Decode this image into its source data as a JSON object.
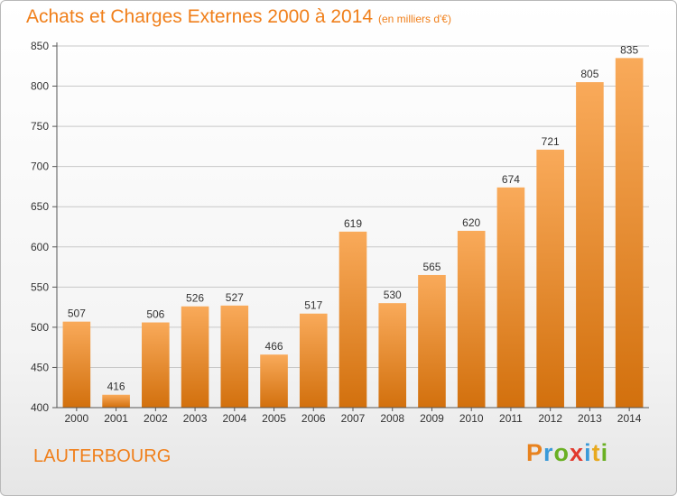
{
  "colors": {
    "accent": "#f07f1a",
    "bar_top": "#f9aa5a",
    "bar_bottom": "#d2700d",
    "axis": "#555555",
    "grid": "#c8c8c8"
  },
  "footer": {
    "city": "LAUTERBOURG",
    "brand_letters": [
      {
        "char": "P",
        "color": "#e8821e"
      },
      {
        "char": "r",
        "color": "#3a9ad9"
      },
      {
        "char": "o",
        "color": "#6ab023"
      },
      {
        "char": "x",
        "color": "#e23a2e"
      },
      {
        "char": "i",
        "color": "#3a9ad9"
      },
      {
        "char": "t",
        "color": "#e8a91e"
      },
      {
        "char": "i",
        "color": "#6ab023"
      }
    ]
  },
  "chart_data": {
    "type": "bar",
    "title": "Achats et Charges Externes 2000 à 2014",
    "subtitle": "(en milliers d'€)",
    "xlabel": "",
    "ylabel": "",
    "categories": [
      "2000",
      "2001",
      "2002",
      "2003",
      "2004",
      "2005",
      "2006",
      "2007",
      "2008",
      "2009",
      "2010",
      "2011",
      "2012",
      "2013",
      "2014"
    ],
    "values": [
      507,
      416,
      506,
      526,
      527,
      466,
      517,
      619,
      530,
      565,
      620,
      674,
      721,
      805,
      835
    ],
    "ylim": [
      400,
      850
    ],
    "yticks": [
      400,
      450,
      500,
      550,
      600,
      650,
      700,
      750,
      800,
      850
    ],
    "grid": true,
    "legend": "none"
  }
}
